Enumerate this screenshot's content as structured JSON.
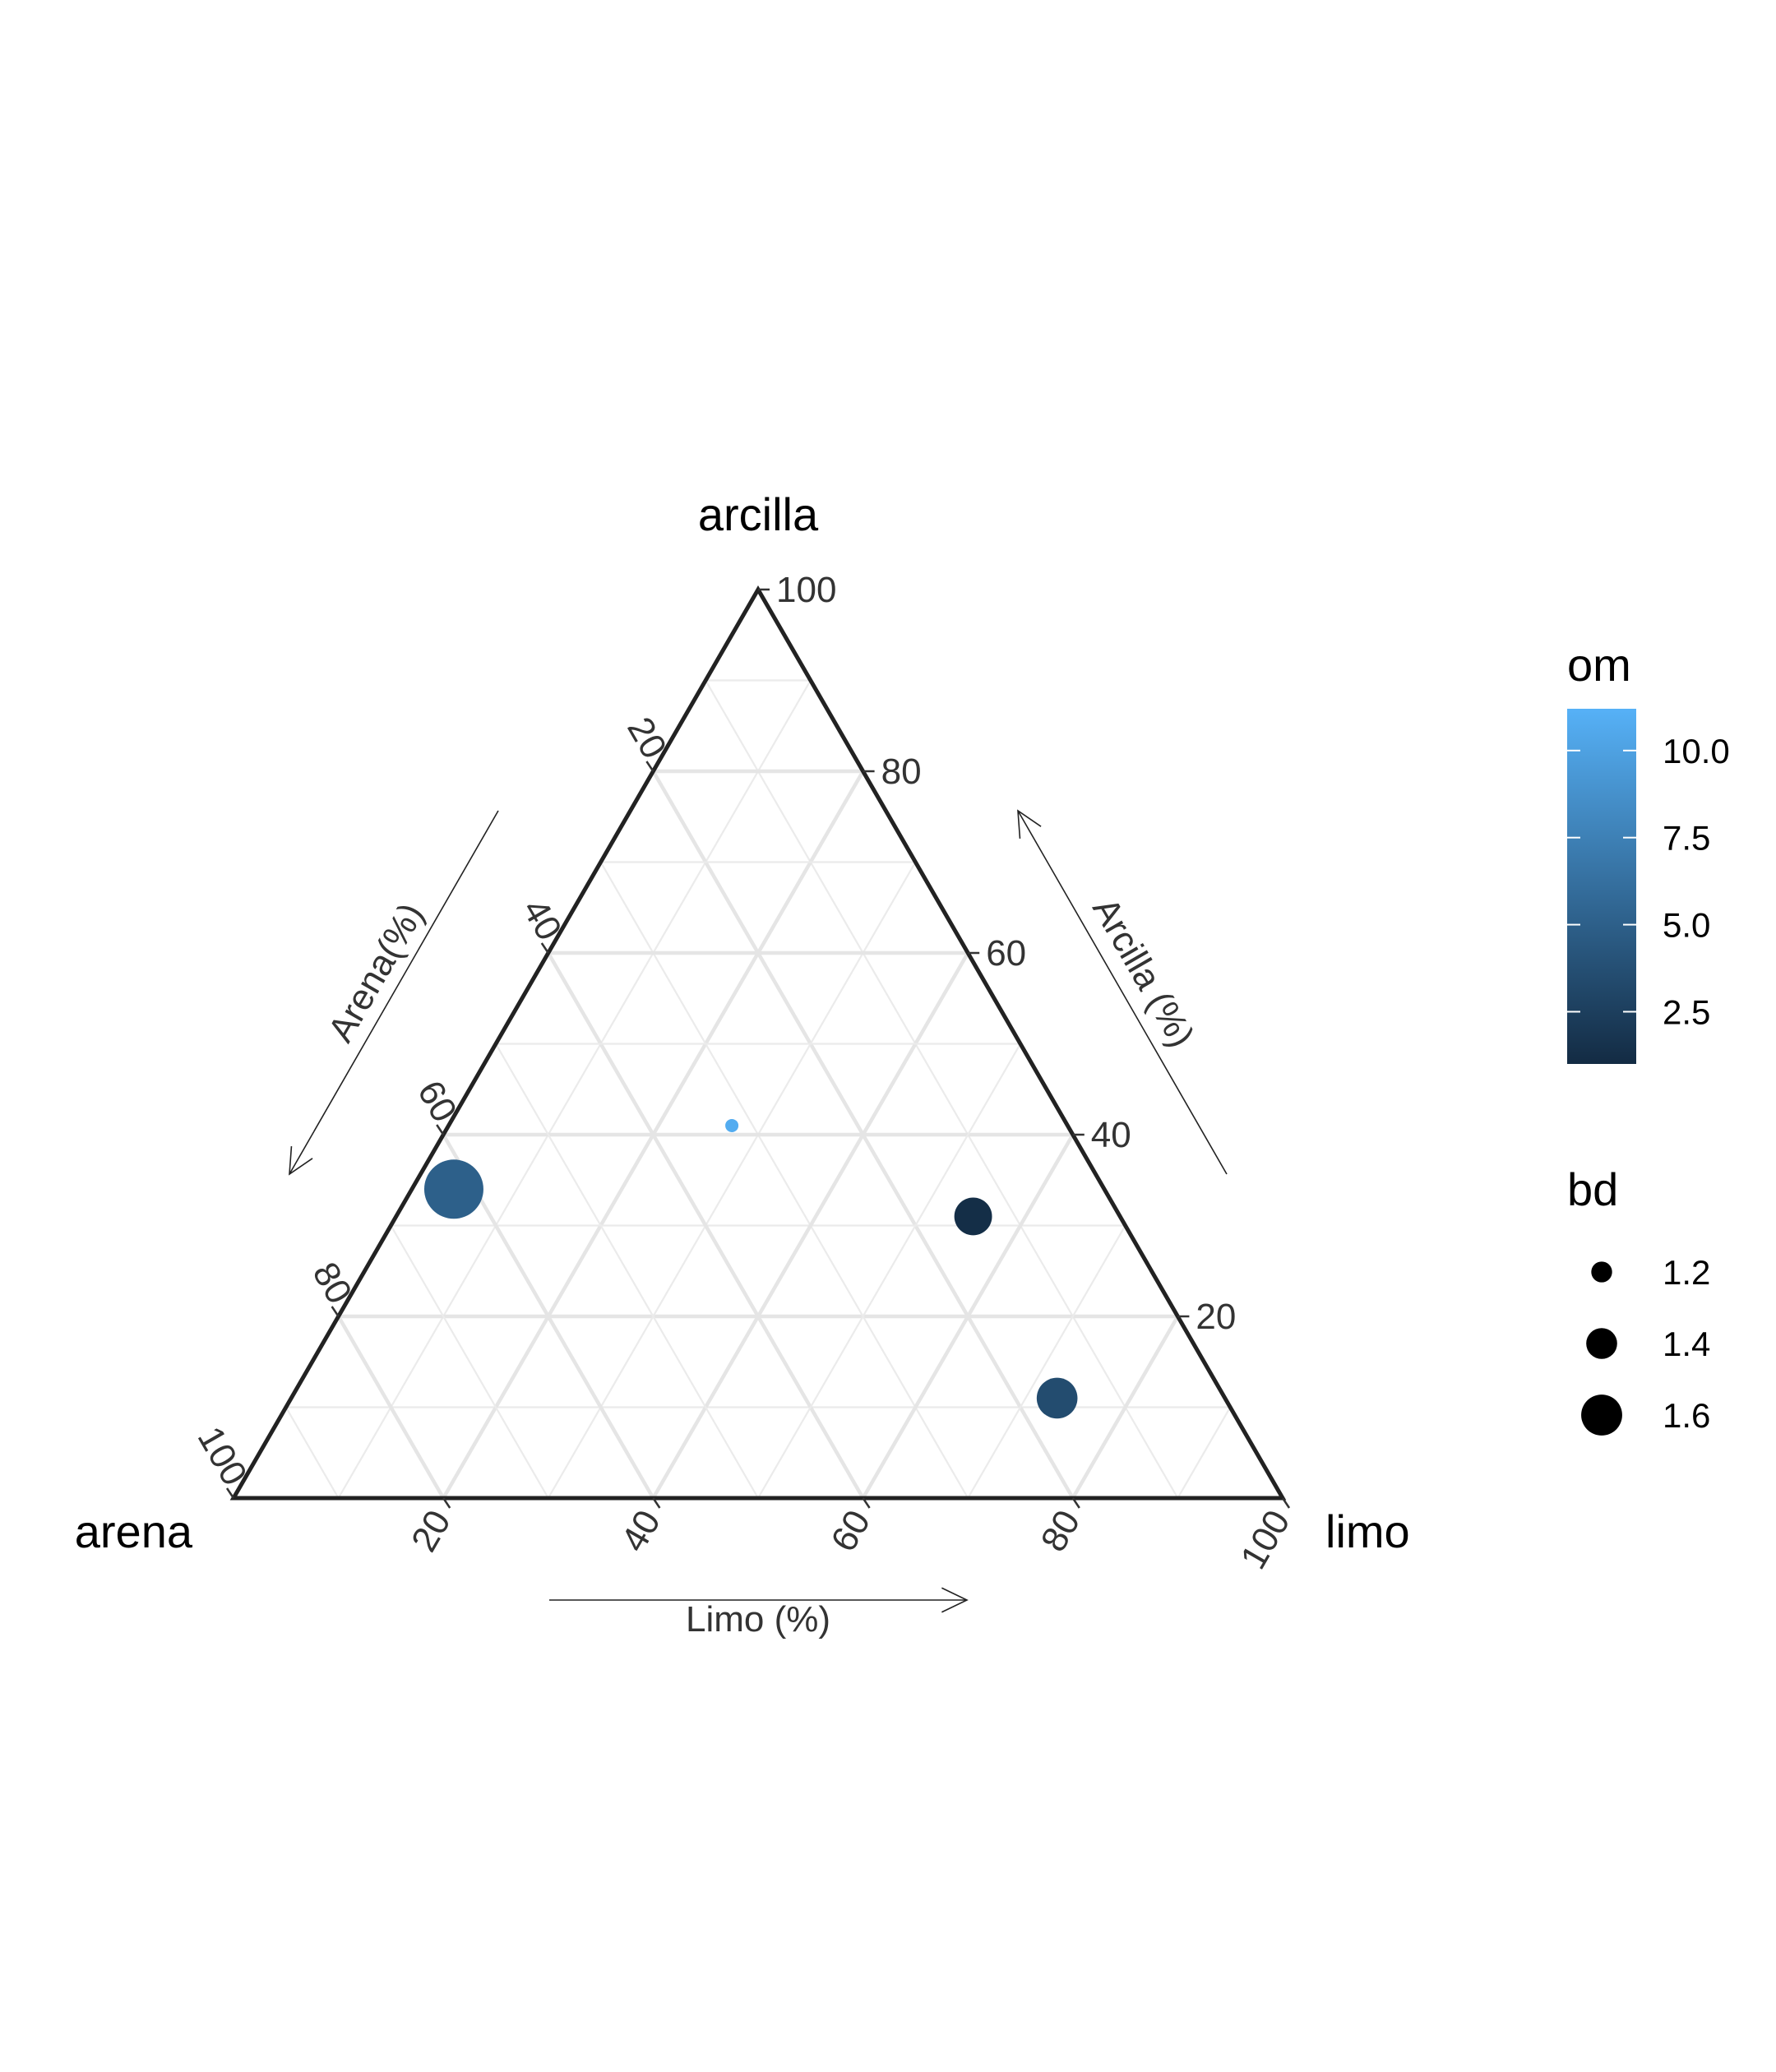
{
  "chart_data": {
    "type": "scatter",
    "subtype": "ternary",
    "grid": true,
    "vertices": {
      "top": "arcilla",
      "left": "arena",
      "right": "limo"
    },
    "axis_titles": {
      "left": "Arena(%)",
      "right": "Arcilla (%)",
      "bottom": "Limo (%)"
    },
    "ticks": [
      20,
      40,
      60,
      80,
      100
    ],
    "tick_labels": [
      "20",
      "40",
      "60",
      "80",
      "100"
    ],
    "points": [
      {
        "arena": 62,
        "limo": 4,
        "arcilla": 34,
        "om": 5.0,
        "bd": 1.75
      },
      {
        "arena": 32,
        "limo": 27,
        "arcilla": 41,
        "om": 10.8,
        "bd": 1.0
      },
      {
        "arena": 14,
        "limo": 55,
        "arcilla": 31,
        "om": 1.2,
        "bd": 1.4
      },
      {
        "arena": 16,
        "limo": 73,
        "arcilla": 11,
        "om": 3.5,
        "bd": 1.45
      }
    ],
    "legend": {
      "placement": "right",
      "color": {
        "title": "om",
        "range": [
          1.0,
          11.2
        ],
        "ticks": [
          2.5,
          5.0,
          7.5,
          10.0
        ],
        "tick_labels": [
          "2.5",
          "5.0",
          "7.5",
          "10.0"
        ],
        "low_color": "#132B43",
        "high_color": "#56B1F7"
      },
      "size": {
        "title": "bd",
        "values": [
          1.2,
          1.4,
          1.6
        ],
        "labels": [
          "1.2",
          "1.4",
          "1.6"
        ]
      }
    }
  }
}
